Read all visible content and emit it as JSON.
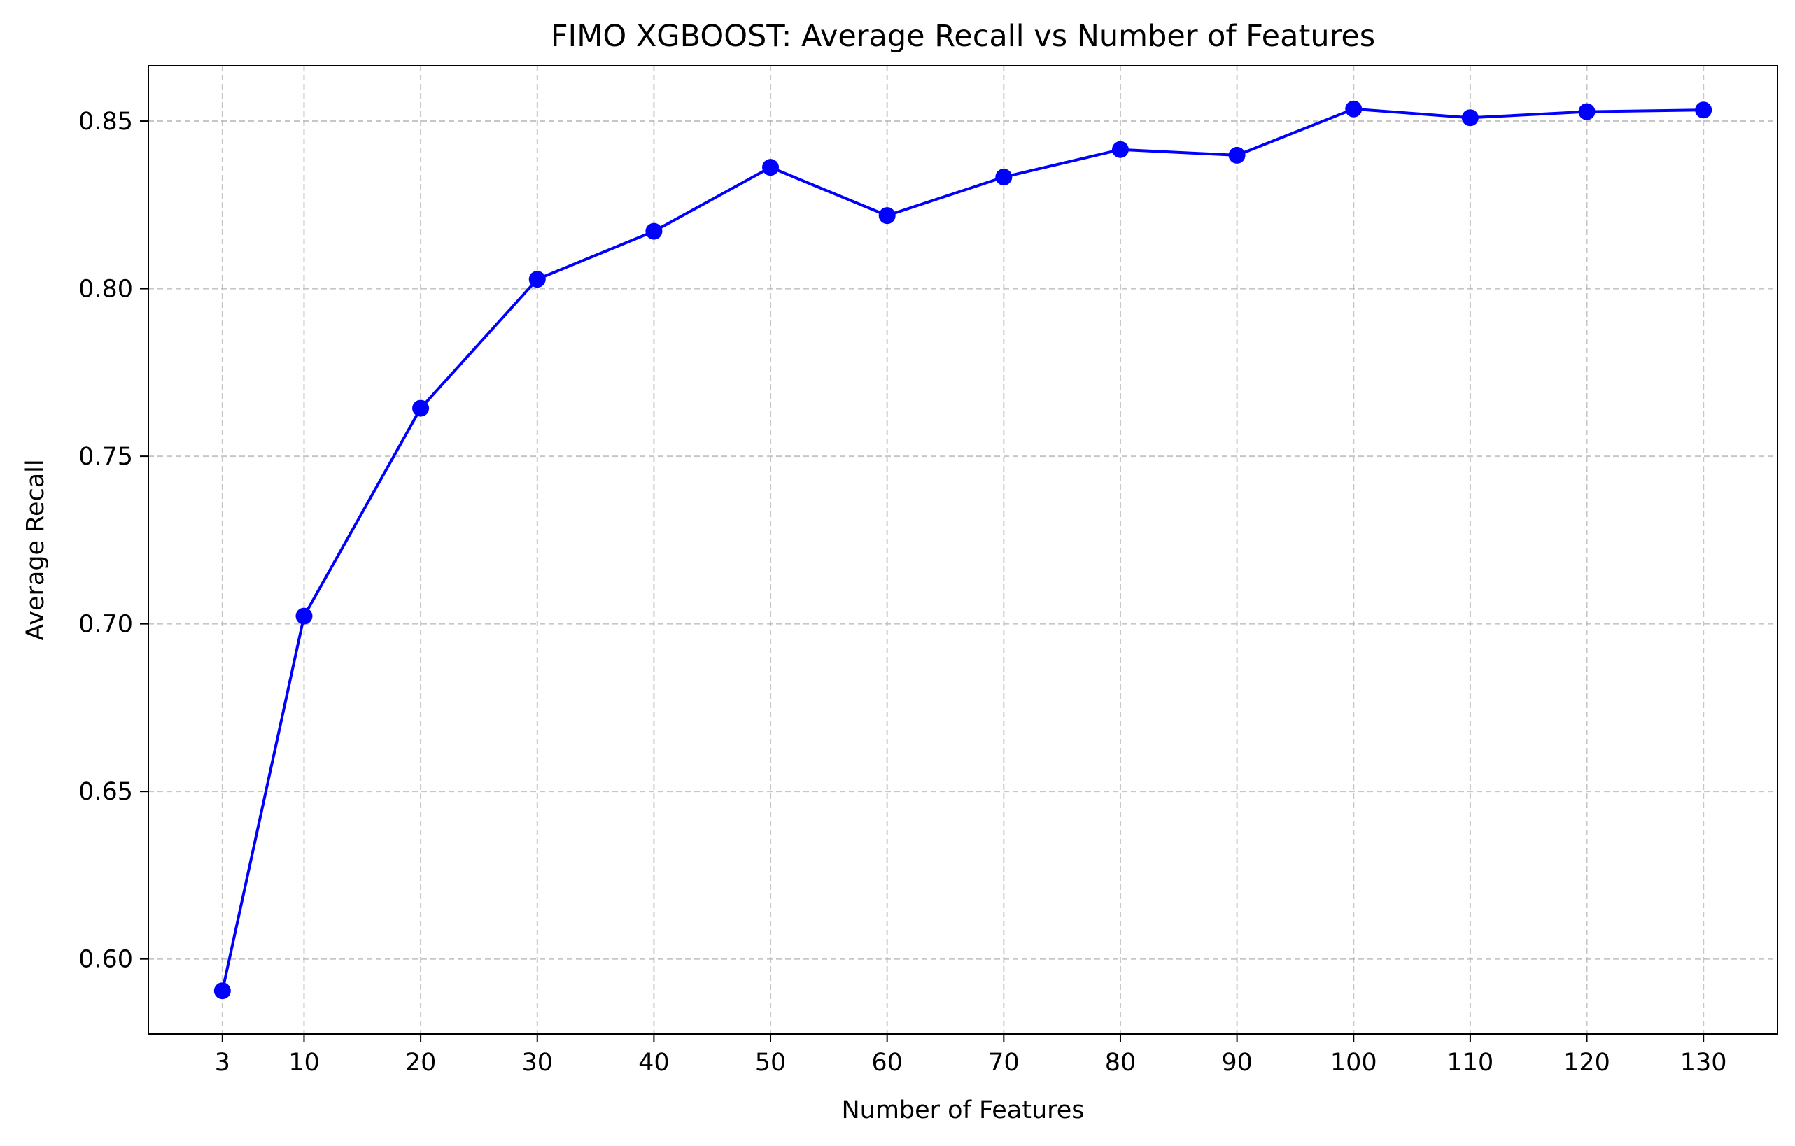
{
  "chart_data": {
    "type": "line",
    "title": "FIMO XGBOOST: Average Recall vs Number of Features",
    "xlabel": "Number of Features",
    "ylabel": "Average Recall",
    "x": [
      3,
      10,
      20,
      30,
      40,
      50,
      60,
      70,
      80,
      90,
      100,
      110,
      120,
      130
    ],
    "x_ticks": [
      3,
      10,
      20,
      30,
      40,
      50,
      60,
      70,
      80,
      90,
      100,
      110,
      120,
      130
    ],
    "x_tick_labels": [
      "3",
      "10",
      "20",
      "30",
      "40",
      "50",
      "60",
      "70",
      "80",
      "90",
      "100",
      "110",
      "120",
      "130"
    ],
    "y_ticks": [
      0.6,
      0.65,
      0.7,
      0.75,
      0.8,
      0.85
    ],
    "y_tick_labels": [
      "0.60",
      "0.65",
      "0.70",
      "0.75",
      "0.80",
      "0.85"
    ],
    "xlim": [
      -3.35,
      136.35
    ],
    "ylim": [
      0.5776,
      0.8665
    ],
    "grid": true,
    "series": [
      {
        "color": "#0000ff",
        "marker": "circle",
        "values": [
          0.5905,
          0.7023,
          0.7643,
          0.8028,
          0.8171,
          0.8362,
          0.8218,
          0.8333,
          0.8415,
          0.8398,
          0.8536,
          0.851,
          0.8528,
          0.8533
        ]
      }
    ]
  }
}
